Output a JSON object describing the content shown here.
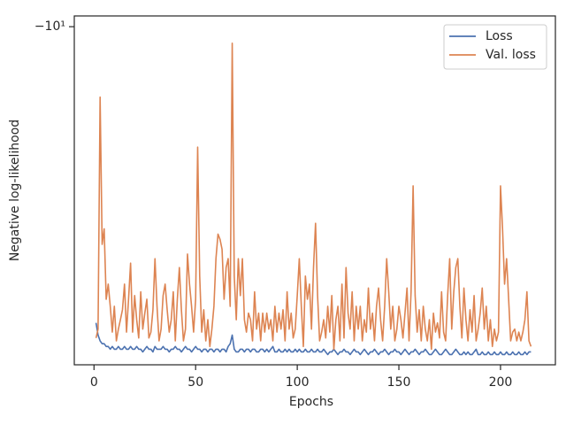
{
  "chart_data": {
    "type": "line",
    "xlabel": "Epochs",
    "ylabel": "Negative log-likelihood",
    "yscale": "symlog",
    "grid": false,
    "legend": "upper right",
    "xlim": [
      -9.7,
      227
    ],
    "xticks": [
      0,
      50,
      100,
      150,
      200
    ],
    "ylim": [
      -70,
      -9.4
    ],
    "yticks": [
      {
        "value": -10,
        "label": "−10¹"
      }
    ],
    "x": [
      1,
      2,
      3,
      4,
      5,
      6,
      7,
      8,
      9,
      10,
      11,
      12,
      13,
      14,
      15,
      16,
      17,
      18,
      19,
      20,
      21,
      22,
      23,
      24,
      25,
      26,
      27,
      28,
      29,
      30,
      31,
      32,
      33,
      34,
      35,
      36,
      37,
      38,
      39,
      40,
      41,
      42,
      43,
      44,
      45,
      46,
      47,
      48,
      49,
      50,
      51,
      52,
      53,
      54,
      55,
      56,
      57,
      58,
      59,
      60,
      61,
      62,
      63,
      64,
      65,
      66,
      67,
      68,
      69,
      70,
      71,
      72,
      73,
      74,
      75,
      76,
      77,
      78,
      79,
      80,
      81,
      82,
      83,
      84,
      85,
      86,
      87,
      88,
      89,
      90,
      91,
      92,
      93,
      94,
      95,
      96,
      97,
      98,
      99,
      100,
      101,
      102,
      103,
      104,
      105,
      106,
      107,
      108,
      109,
      110,
      111,
      112,
      113,
      114,
      115,
      116,
      117,
      118,
      119,
      120,
      121,
      122,
      123,
      124,
      125,
      126,
      127,
      128,
      129,
      130,
      131,
      132,
      133,
      134,
      135,
      136,
      137,
      138,
      139,
      140,
      141,
      142,
      143,
      144,
      145,
      146,
      147,
      148,
      149,
      150,
      151,
      152,
      153,
      154,
      155,
      156,
      157,
      158,
      159,
      160,
      161,
      162,
      163,
      164,
      165,
      166,
      167,
      168,
      169,
      170,
      171,
      172,
      173,
      174,
      175,
      176,
      177,
      178,
      179,
      180,
      181,
      182,
      183,
      184,
      185,
      186,
      187,
      188,
      189,
      190,
      191,
      192,
      193,
      194,
      195,
      196,
      197,
      198,
      199,
      200,
      201,
      202,
      203,
      204,
      205,
      206,
      207,
      208,
      209,
      210,
      211,
      212,
      213,
      214,
      215
    ],
    "series": [
      {
        "name": "Loss",
        "color": "#4c72b0",
        "values": [
          -55,
          -59,
          -61,
          -62,
          -62,
          -63,
          -63,
          -64,
          -63,
          -64,
          -64,
          -63,
          -64,
          -64,
          -63,
          -64,
          -64,
          -63,
          -64,
          -64,
          -63,
          -64,
          -64,
          -65,
          -64,
          -63,
          -64,
          -64,
          -65,
          -63,
          -64,
          -64,
          -64,
          -63,
          -64,
          -64,
          -65,
          -64,
          -64,
          -63,
          -64,
          -64,
          -65,
          -64,
          -63,
          -64,
          -64,
          -65,
          -64,
          -63,
          -64,
          -64,
          -65,
          -64,
          -64,
          -65,
          -64,
          -64,
          -65,
          -64,
          -64,
          -65,
          -64,
          -64,
          -65,
          -63,
          -62,
          -59,
          -64,
          -65,
          -65,
          -64,
          -64,
          -65,
          -64,
          -64,
          -65,
          -64,
          -64,
          -65,
          -65,
          -64,
          -64,
          -65,
          -64,
          -65,
          -64,
          -63,
          -65,
          -65,
          -64,
          -65,
          -65,
          -64,
          -65,
          -64,
          -65,
          -65,
          -64,
          -65,
          -64,
          -65,
          -65,
          -64,
          -65,
          -65,
          -64,
          -65,
          -65,
          -64,
          -65,
          -65,
          -64,
          -65,
          -66,
          -65,
          -65,
          -64,
          -65,
          -66,
          -65,
          -65,
          -64,
          -65,
          -65,
          -66,
          -65,
          -64,
          -65,
          -65,
          -66,
          -65,
          -64,
          -65,
          -66,
          -65,
          -65,
          -64,
          -65,
          -66,
          -65,
          -65,
          -64,
          -65,
          -66,
          -65,
          -65,
          -64,
          -65,
          -65,
          -66,
          -65,
          -64,
          -65,
          -66,
          -65,
          -65,
          -64,
          -65,
          -66,
          -65,
          -65,
          -64,
          -65,
          -66,
          -66,
          -65,
          -64,
          -65,
          -66,
          -66,
          -65,
          -64,
          -65,
          -66,
          -66,
          -65,
          -64,
          -65,
          -66,
          -66,
          -65,
          -66,
          -65,
          -66,
          -66,
          -65,
          -64,
          -66,
          -66,
          -65,
          -66,
          -66,
          -65,
          -66,
          -66,
          -65,
          -66,
          -66,
          -65,
          -66,
          -66,
          -65,
          -66,
          -66,
          -65,
          -66,
          -66,
          -65,
          -66,
          -66,
          -65,
          -66,
          -65,
          -65
        ]
      },
      {
        "name": "Val. loss",
        "color": "#dd8452",
        "values": [
          -60,
          -57,
          -15,
          -35,
          -32,
          -48,
          -44,
          -50,
          -58,
          -50,
          -61,
          -57,
          -54,
          -51,
          -44,
          -58,
          -48,
          -39,
          -58,
          -47,
          -54,
          -60,
          -46,
          -57,
          -52,
          -48,
          -60,
          -58,
          -51,
          -38,
          -50,
          -61,
          -57,
          -47,
          -44,
          -51,
          -58,
          -54,
          -46,
          -61,
          -48,
          -40,
          -51,
          -61,
          -57,
          -37,
          -44,
          -50,
          -58,
          -48,
          -20,
          -42,
          -58,
          -51,
          -61,
          -54,
          -63,
          -57,
          -50,
          -38,
          -33,
          -34,
          -36,
          -48,
          -40,
          -38,
          -50,
          -11,
          -42,
          -54,
          -38,
          -47,
          -38,
          -54,
          -58,
          -52,
          -54,
          -61,
          -46,
          -57,
          -52,
          -61,
          -52,
          -58,
          -52,
          -57,
          -54,
          -61,
          -50,
          -58,
          -52,
          -57,
          -51,
          -61,
          -46,
          -57,
          -52,
          -60,
          -57,
          -47,
          -38,
          -50,
          -63,
          -42,
          -48,
          -44,
          -57,
          -40,
          -31,
          -47,
          -61,
          -58,
          -54,
          -60,
          -50,
          -58,
          -47,
          -64,
          -54,
          -50,
          -61,
          -44,
          -60,
          -40,
          -52,
          -57,
          -46,
          -61,
          -50,
          -57,
          -50,
          -61,
          -54,
          -58,
          -45,
          -57,
          -52,
          -61,
          -50,
          -45,
          -54,
          -61,
          -50,
          -38,
          -46,
          -57,
          -50,
          -61,
          -57,
          -50,
          -54,
          -60,
          -52,
          -45,
          -61,
          -46,
          -25,
          -47,
          -58,
          -51,
          -61,
          -50,
          -57,
          -61,
          -54,
          -64,
          -52,
          -58,
          -55,
          -60,
          -46,
          -58,
          -61,
          -47,
          -38,
          -57,
          -46,
          -40,
          -38,
          -50,
          -60,
          -45,
          -54,
          -61,
          -51,
          -58,
          -47,
          -61,
          -57,
          -52,
          -45,
          -57,
          -50,
          -61,
          -54,
          -63,
          -57,
          -61,
          -58,
          -25,
          -32,
          -44,
          -38,
          -48,
          -61,
          -58,
          -57,
          -61,
          -58,
          -61,
          -58,
          -54,
          -46,
          -61,
          -63
        ]
      }
    ]
  }
}
